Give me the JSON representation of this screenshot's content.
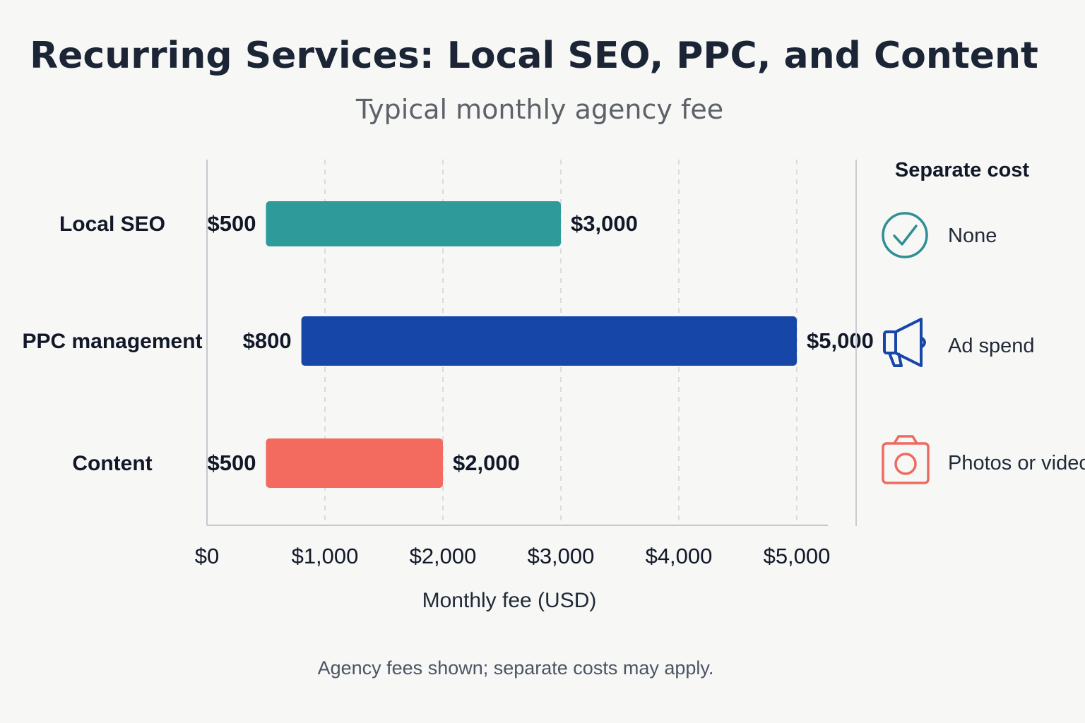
{
  "title": "Recurring Services: Local SEO, PPC, and Content",
  "subtitle": "Typical monthly agency fee",
  "chart_data": {
    "type": "bar",
    "orientation": "horizontal",
    "subtype": "range",
    "categories": [
      "Local SEO",
      "PPC management",
      "Content"
    ],
    "series": [
      {
        "low": 500,
        "high": 3000,
        "low_label": "$500",
        "high_label": "$3,000",
        "color": "#2f9a9a"
      },
      {
        "low": 800,
        "high": 5000,
        "low_label": "$800",
        "high_label": "$5,000",
        "color": "#1546a8"
      },
      {
        "low": 500,
        "high": 2000,
        "low_label": "$500",
        "high_label": "$2,000",
        "color": "#f26b5e"
      }
    ],
    "xlim": [
      0,
      5000
    ],
    "xticks": [
      0,
      1000,
      2000,
      3000,
      4000,
      5000
    ],
    "xtick_labels": [
      "$0",
      "$1,000",
      "$2,000",
      "$3,000",
      "$4,000",
      "$5,000"
    ],
    "xlabel": "Monthly fee (USD)",
    "grid": "vertical dashed"
  },
  "separate_cost": {
    "title": "Separate cost",
    "items": [
      {
        "icon": "check-circle-icon",
        "label": "None",
        "color": "#2f8f94"
      },
      {
        "icon": "megaphone-icon",
        "label": "Ad spend",
        "color": "#1546a8"
      },
      {
        "icon": "camera-icon",
        "label": "Photos or video",
        "color": "#ef6a5e"
      }
    ]
  },
  "footnote": "Agency fees shown; separate costs may apply."
}
